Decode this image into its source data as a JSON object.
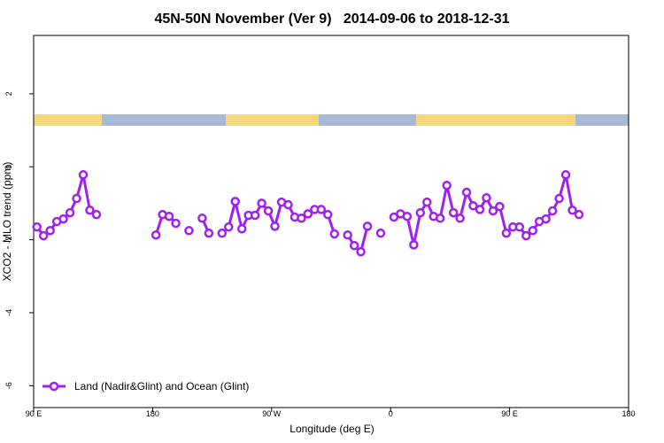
{
  "chart_data": {
    "type": "line",
    "title": "45N-50N November (Ver 9)   2014-09-06 to 2018-12-31",
    "xlabel": "Longitude (deg E)",
    "ylabel": "XCO2 - MLO trend (ppm)",
    "x": [
      92.5,
      97.5,
      102.5,
      107.5,
      112.5,
      117.5,
      122.5,
      127.5,
      132.5,
      137.5,
      142.5,
      147.5,
      152.5,
      157.5,
      162.5,
      167.5,
      172.5,
      177.5,
      182.5,
      187.5,
      192.5,
      197.5,
      202.5,
      207.5,
      212.5,
      217.5,
      222.5,
      227.5,
      232.5,
      237.5,
      242.5,
      247.5,
      252.5,
      257.5,
      262.5,
      267.5,
      272.5,
      277.5,
      282.5,
      287.5,
      292.5,
      297.5,
      302.5,
      307.5,
      312.5,
      317.5,
      322.5,
      327.5,
      332.5,
      337.5,
      342.5,
      347.5,
      352.5,
      357.5,
      362.5,
      367.5,
      372.5,
      377.5,
      382.5,
      387.5,
      392.5,
      397.5,
      402.5,
      407.5,
      412.5,
      417.5,
      422.5,
      427.5,
      432.5,
      437.5,
      442.5,
      447.5,
      452.5,
      457.5,
      462.5,
      467.5,
      472.5,
      477.5,
      482.5,
      487.5,
      492.5,
      497.5,
      502.5
    ],
    "series": [
      {
        "name": "Land (Nadir&Glint) and Ocean (Glint)",
        "color": "#a020f0",
        "values": [
          -1.65,
          -1.89,
          -1.75,
          -1.5,
          -1.43,
          -1.26,
          -0.87,
          -0.22,
          -1.19,
          -1.31,
          null,
          null,
          null,
          null,
          null,
          null,
          null,
          null,
          -1.87,
          -1.31,
          -1.36,
          -1.55,
          null,
          -1.75,
          null,
          -1.41,
          -1.82,
          null,
          -1.82,
          -1.65,
          -0.95,
          -1.7,
          -1.33,
          -1.33,
          -1.0,
          -1.21,
          -1.63,
          -0.97,
          -1.04,
          -1.38,
          -1.41,
          -1.29,
          -1.17,
          -1.17,
          -1.31,
          -1.84,
          null,
          -1.87,
          -2.16,
          -2.33,
          -1.63,
          null,
          -1.82,
          null,
          -1.38,
          -1.29,
          -1.36,
          -2.14,
          -1.26,
          -0.97,
          -1.36,
          -1.41,
          -0.51,
          -1.26,
          -1.41,
          -0.7,
          -1.07,
          -1.17,
          -0.85,
          -1.21,
          -1.09,
          -1.82,
          -1.65,
          -1.65,
          -1.89,
          -1.75,
          -1.5,
          -1.43,
          -1.21,
          -0.87,
          -0.22,
          -1.19,
          -1.31
        ]
      }
    ],
    "xlim": [
      90,
      540
    ],
    "xticks": [
      {
        "value": 90,
        "label": "90 E"
      },
      180,
      {
        "value": 270,
        "label": "90 W"
      },
      {
        "value": 360,
        "label": "0"
      },
      {
        "value": 450,
        "label": "90 E"
      },
      {
        "value": 540,
        "label": "180"
      }
    ],
    "ylim": [
      -6.6,
      3.6
    ],
    "yticks": [
      -6,
      -4,
      -2,
      0,
      2
    ],
    "legend": "bottom-left"
  }
}
